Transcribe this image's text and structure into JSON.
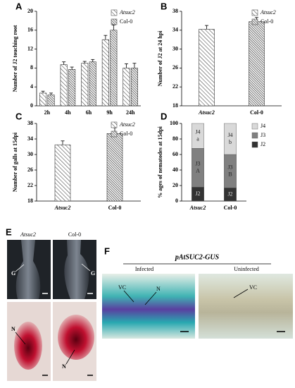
{
  "panel_labels": [
    "A",
    "B",
    "C",
    "D",
    "E",
    "F"
  ],
  "chart_data": [
    {
      "type": "bar",
      "y_label": "Number of J2 touching  root",
      "categories": [
        "2h",
        "4h",
        "6h",
        "9h",
        "24h"
      ],
      "series": [
        {
          "name": "Atsuc2",
          "color": "#333333",
          "hatch": "sparse",
          "values": [
            2.7,
            8.7,
            9.0,
            14.0,
            8.0
          ],
          "errors": [
            0.4,
            0.6,
            0.4,
            0.9,
            0.9
          ]
        },
        {
          "name": "Col-0",
          "color": "#333333",
          "hatch": "dense",
          "values": [
            2.3,
            7.7,
            9.3,
            16.0,
            8.0
          ],
          "errors": [
            0.4,
            0.5,
            0.5,
            1.1,
            1.0
          ]
        }
      ],
      "ylim": [
        0,
        20
      ],
      "yticks": [
        0,
        4,
        8,
        12,
        16,
        20
      ],
      "legend": "upper right"
    },
    {
      "type": "bar",
      "y_label": "Number of J2 at 24 hpi",
      "categories": [
        "Atsuc2",
        "Col-0"
      ],
      "series": [
        {
          "name": "Atsuc2",
          "color": "#333333",
          "hatch": "sparse",
          "values": [
            34.2,
            null
          ],
          "errors": [
            0.8,
            null
          ]
        },
        {
          "name": "Col-0",
          "color": "#333333",
          "hatch": "dense",
          "values": [
            null,
            35.8
          ],
          "errors": [
            null,
            0.9
          ]
        }
      ],
      "ylim": [
        18,
        38
      ],
      "yticks": [
        18,
        22,
        26,
        30,
        34,
        38
      ],
      "legend": "upper right"
    },
    {
      "type": "bar",
      "y_label": "Number of galls at 15dpi",
      "categories": [
        "Atsuc2",
        "Col-0"
      ],
      "series": [
        {
          "name": "Atsuc2",
          "color": "#333333",
          "hatch": "sparse",
          "values": [
            32.5,
            null
          ],
          "errors": [
            1.0,
            null
          ]
        },
        {
          "name": "Col-0",
          "color": "#333333",
          "hatch": "dense",
          "values": [
            null,
            35.4
          ],
          "errors": [
            null,
            1.5
          ]
        }
      ],
      "ylim": [
        18,
        38
      ],
      "yticks": [
        18,
        22,
        26,
        30,
        34,
        38
      ],
      "legend": "upper right"
    },
    {
      "type": "stacked_bar",
      "y_label": "% ages of nematodes at 15dpi",
      "categories": [
        "Atsuc2",
        "Col-0"
      ],
      "series": [
        {
          "name": "J2",
          "color": "#333333",
          "values": [
            18,
            17
          ]
        },
        {
          "name": "J3",
          "color": "#808080",
          "values": [
            50,
            43
          ],
          "segment_labels": [
            "A",
            "B"
          ]
        },
        {
          "name": "J4",
          "color": "#d9d9d9",
          "values": [
            32,
            40
          ],
          "segment_labels": [
            "a",
            "b"
          ]
        }
      ],
      "ylim": [
        0,
        100
      ],
      "yticks": [
        0,
        20,
        40,
        60,
        80,
        100
      ],
      "legend": "right"
    }
  ],
  "micrographs": {
    "E": {
      "columns": [
        "Atsuc2",
        "Col-0"
      ],
      "labels": [
        "G",
        "G",
        "N",
        "N"
      ]
    },
    "F": {
      "title": "pAtSUC2-GUS",
      "columns": [
        "Infected",
        "Uninfected"
      ],
      "labels": [
        "VC",
        "N",
        "VC"
      ]
    }
  }
}
